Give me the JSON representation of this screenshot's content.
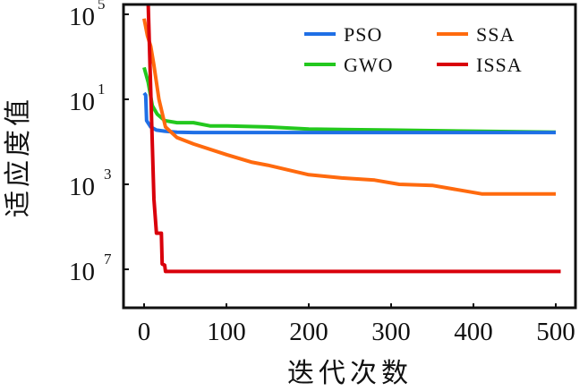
{
  "chart_data": {
    "type": "line",
    "title": "",
    "xlabel": "迭代次数",
    "ylabel": "适应度值",
    "xlim": [
      -5,
      525
    ],
    "ylim_log10": [
      -9.0,
      5.5
    ],
    "yscale": "log",
    "x_ticks": [
      {
        "value": 0,
        "label": "0"
      },
      {
        "value": 100,
        "label": "100"
      },
      {
        "value": 200,
        "label": "200"
      },
      {
        "value": 300,
        "label": "300"
      },
      {
        "value": 400,
        "label": "400"
      },
      {
        "value": 500,
        "label": "500"
      }
    ],
    "y_ticks": [
      {
        "log10": 5,
        "base": "10",
        "exp": "5"
      },
      {
        "log10": 1,
        "base": "10",
        "exp": "1"
      },
      {
        "log10": -3,
        "base": "10",
        "exp": "3"
      },
      {
        "log10": -7,
        "base": "10",
        "exp": "7"
      }
    ],
    "grid": false,
    "legend": {
      "position": "top-right",
      "columns": 2
    },
    "series": [
      {
        "name": "PSO",
        "color": "#1f6fe6",
        "points_log10": [
          [
            0,
            1.3
          ],
          [
            2,
            1.2
          ],
          [
            3,
            0.0
          ],
          [
            8,
            -0.3
          ],
          [
            15,
            -0.45
          ],
          [
            25,
            -0.5
          ],
          [
            40,
            -0.55
          ],
          [
            60,
            -0.56
          ],
          [
            100,
            -0.56
          ],
          [
            300,
            -0.56
          ],
          [
            500,
            -0.56
          ]
        ]
      },
      {
        "name": "SSA",
        "color": "#ff6a0e",
        "points_log10": [
          [
            0,
            4.8
          ],
          [
            4,
            4.0
          ],
          [
            8,
            3.5
          ],
          [
            12,
            2.6
          ],
          [
            18,
            1.0
          ],
          [
            26,
            -0.3
          ],
          [
            40,
            -0.8
          ],
          [
            60,
            -1.1
          ],
          [
            100,
            -1.6
          ],
          [
            130,
            -1.95
          ],
          [
            150,
            -2.1
          ],
          [
            200,
            -2.55
          ],
          [
            240,
            -2.7
          ],
          [
            280,
            -2.8
          ],
          [
            310,
            -3.0
          ],
          [
            350,
            -3.05
          ],
          [
            410,
            -3.45
          ],
          [
            500,
            -3.45
          ]
        ]
      },
      {
        "name": "GWO",
        "color": "#23c81e",
        "points_log10": [
          [
            0,
            2.5
          ],
          [
            5,
            1.8
          ],
          [
            10,
            0.7
          ],
          [
            16,
            0.3
          ],
          [
            25,
            0.0
          ],
          [
            40,
            -0.1
          ],
          [
            60,
            -0.1
          ],
          [
            80,
            -0.25
          ],
          [
            100,
            -0.25
          ],
          [
            150,
            -0.3
          ],
          [
            200,
            -0.4
          ],
          [
            300,
            -0.45
          ],
          [
            400,
            -0.5
          ],
          [
            500,
            -0.55
          ]
        ]
      },
      {
        "name": "ISSA",
        "color": "#d9000b",
        "points_log10": [
          [
            5,
            5.5
          ],
          [
            12,
            -3.7
          ],
          [
            15,
            -5.3
          ],
          [
            21,
            -5.3
          ],
          [
            22,
            -6.75
          ],
          [
            25,
            -6.8
          ],
          [
            26,
            -7.1
          ],
          [
            100,
            -7.1
          ],
          [
            300,
            -7.1
          ],
          [
            506,
            -7.1
          ]
        ]
      }
    ]
  }
}
